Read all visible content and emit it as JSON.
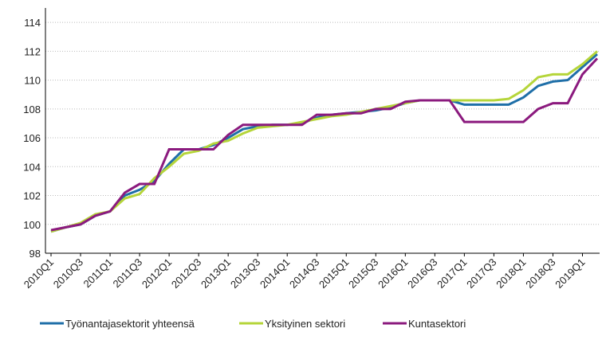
{
  "chart_data": {
    "type": "line",
    "categories": [
      "2010Q1",
      null,
      "2010Q3",
      null,
      "2011Q1",
      null,
      "2011Q3",
      null,
      "2012Q1",
      null,
      "2012Q3",
      null,
      "2013Q1",
      null,
      "2013Q3",
      null,
      "2014Q1",
      null,
      "2014Q3",
      null,
      "2015Q1",
      null,
      "2015Q3",
      null,
      "2016Q1",
      null,
      "2016Q3",
      null,
      "2017Q1",
      null,
      "2017Q3",
      null,
      "2018Q1",
      null,
      "2018Q3",
      null,
      "2019Q1",
      null
    ],
    "series": [
      {
        "name": "Työnantajasektorit yhteensä",
        "color": "#1f6fa8",
        "values": [
          99.5,
          99.8,
          100.0,
          100.6,
          100.9,
          102.0,
          102.4,
          103.0,
          104.2,
          105.2,
          105.2,
          105.5,
          106.0,
          106.6,
          106.8,
          106.9,
          106.9,
          107.0,
          107.4,
          107.6,
          107.7,
          107.8,
          107.9,
          108.1,
          108.4,
          108.6,
          108.6,
          108.6,
          108.3,
          108.3,
          108.3,
          108.3,
          108.8,
          109.6,
          109.9,
          110.0,
          110.9,
          111.8
        ]
      },
      {
        "name": "Yksityinen sektori",
        "color": "#b5d53a",
        "values": [
          99.5,
          99.8,
          100.1,
          100.7,
          100.9,
          101.8,
          102.1,
          103.2,
          104.0,
          104.9,
          105.1,
          105.6,
          105.8,
          106.3,
          106.7,
          106.8,
          106.9,
          107.1,
          107.3,
          107.5,
          107.6,
          107.8,
          108.0,
          108.2,
          108.4,
          108.6,
          108.6,
          108.6,
          108.6,
          108.6,
          108.6,
          108.7,
          109.3,
          110.2,
          110.4,
          110.4,
          111.1,
          112.0
        ]
      },
      {
        "name": "Kuntasektori",
        "color": "#8b1a7e",
        "values": [
          99.6,
          99.8,
          100.0,
          100.6,
          100.9,
          102.2,
          102.8,
          102.8,
          105.2,
          105.2,
          105.2,
          105.2,
          106.2,
          106.9,
          106.9,
          106.9,
          106.9,
          106.9,
          107.6,
          107.6,
          107.7,
          107.7,
          108.0,
          108.0,
          108.5,
          108.6,
          108.6,
          108.6,
          107.1,
          107.1,
          107.1,
          107.1,
          107.1,
          108.0,
          108.4,
          108.4,
          110.4,
          111.5
        ]
      }
    ],
    "ylim": [
      98,
      115
    ],
    "yticks": [
      98,
      100,
      102,
      104,
      106,
      108,
      110,
      112,
      114
    ],
    "grid": true,
    "legend": "bottom"
  }
}
